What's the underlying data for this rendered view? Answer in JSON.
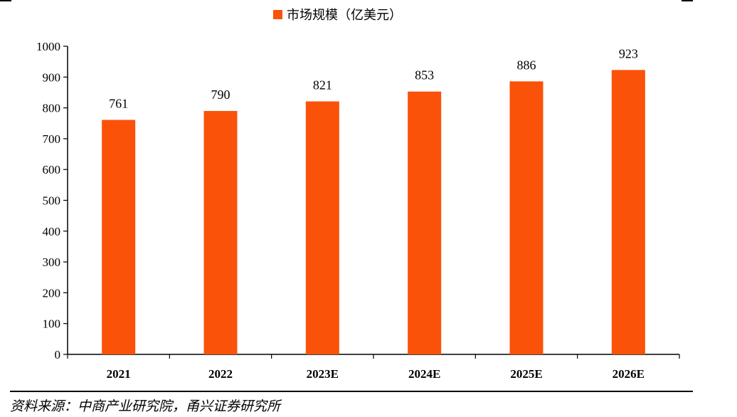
{
  "chart_data": {
    "type": "bar",
    "categories": [
      "2021",
      "2022",
      "2023E",
      "2024E",
      "2025E",
      "2026E"
    ],
    "series": [
      {
        "name": "市场规模（亿美元）",
        "values": [
          761,
          790,
          821,
          853,
          886,
          923
        ],
        "color": "#fa5208"
      }
    ],
    "ylim": [
      0,
      1000
    ],
    "yticks": [
      0,
      100,
      200,
      300,
      400,
      500,
      600,
      700,
      800,
      900,
      1000
    ],
    "grid": false,
    "legend_position": "top-center",
    "data_labels": true
  },
  "source": "资料来源：中商产业研究院，甬兴证券研究所"
}
